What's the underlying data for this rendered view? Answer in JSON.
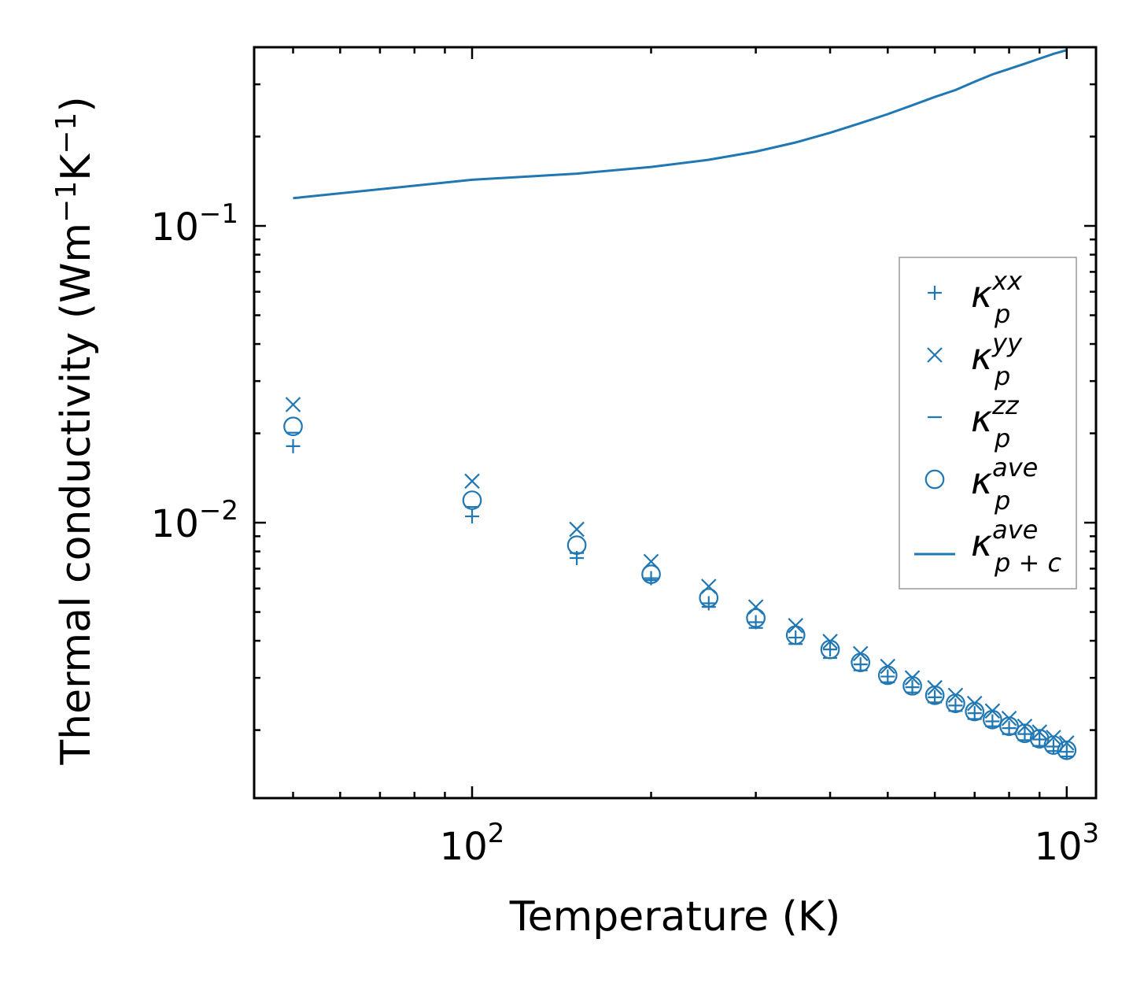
{
  "chart_data": {
    "type": "scatter",
    "xscale": "log",
    "yscale": "log",
    "xlabel": "Temperature (K)",
    "ylabel": "Thermal conductivity (Wm",
    "ylabel_unit": {
      "m_exp": "−1",
      "k_base": "K",
      "k_exp": "−1",
      "close": ")"
    },
    "xlim": [
      43,
      1120
    ],
    "ylim": [
      0.00118,
      0.4
    ],
    "x_tick_labels": [
      {
        "base": "10",
        "exp": "2",
        "value": 100
      },
      {
        "base": "10",
        "exp": "3",
        "value": 1000
      }
    ],
    "y_tick_labels": [
      {
        "base": "10",
        "exp": "−1",
        "value": 0.1
      },
      {
        "base": "10",
        "exp": "−2",
        "value": 0.01
      }
    ],
    "color": "#1f77b4",
    "legend_position": "center-right",
    "x": [
      50,
      100,
      150,
      200,
      250,
      300,
      350,
      400,
      450,
      500,
      550,
      600,
      650,
      700,
      750,
      800,
      850,
      900,
      950,
      1000
    ],
    "series": [
      {
        "name": "kxx",
        "marker": "plus",
        "values": [
          0.0181,
          0.0105,
          0.0076,
          0.0065,
          0.00535,
          0.00462,
          0.0041,
          0.00374,
          0.00333,
          0.00303,
          0.00279,
          0.00258,
          0.00242,
          0.00228,
          0.00214,
          0.00203,
          0.00194,
          0.00186,
          0.00176,
          0.00169
        ]
      },
      {
        "name": "kyy",
        "marker": "x",
        "values": [
          0.025,
          0.0138,
          0.0095,
          0.0074,
          0.0061,
          0.0052,
          0.0045,
          0.00398,
          0.00362,
          0.00328,
          0.003,
          0.00278,
          0.00262,
          0.00246,
          0.00232,
          0.00219,
          0.00206,
          0.00197,
          0.00189,
          0.00181
        ]
      },
      {
        "name": "kzz",
        "marker": "hline",
        "values": [
          0.0201,
          0.0113,
          0.0079,
          0.0064,
          0.0052,
          0.00442,
          0.0039,
          0.0035,
          0.00318,
          0.0029,
          0.00268,
          0.00248,
          0.00232,
          0.00218,
          0.00206,
          0.00194,
          0.00185,
          0.00177,
          0.0017,
          0.00163
        ]
      },
      {
        "name": "kave",
        "marker": "circle",
        "values": [
          0.0211,
          0.0119,
          0.0084,
          0.0067,
          0.00558,
          0.00477,
          0.00418,
          0.00374,
          0.00338,
          0.00306,
          0.00282,
          0.00262,
          0.00246,
          0.00231,
          0.00217,
          0.00206,
          0.00195,
          0.00187,
          0.00178,
          0.00171
        ]
      },
      {
        "name": "kave_pc",
        "marker": "line",
        "values": [
          0.124,
          0.143,
          0.15,
          0.158,
          0.167,
          0.178,
          0.191,
          0.206,
          0.222,
          0.238,
          0.255,
          0.272,
          0.287,
          0.306,
          0.324,
          0.338,
          0.352,
          0.366,
          0.38,
          0.391
        ]
      }
    ],
    "legend": [
      {
        "series": "kxx",
        "sym": "κ",
        "sub": "p",
        "sup": "xx"
      },
      {
        "series": "kyy",
        "sym": "κ",
        "sub": "p",
        "sup": "yy"
      },
      {
        "series": "kzz",
        "sym": "κ",
        "sub": "p",
        "sup": "zz"
      },
      {
        "series": "kave",
        "sym": "κ",
        "sub": "p",
        "sup": "ave"
      },
      {
        "series": "kave_pc",
        "sym": "κ",
        "sub": "p + c",
        "sup": "ave"
      }
    ]
  }
}
